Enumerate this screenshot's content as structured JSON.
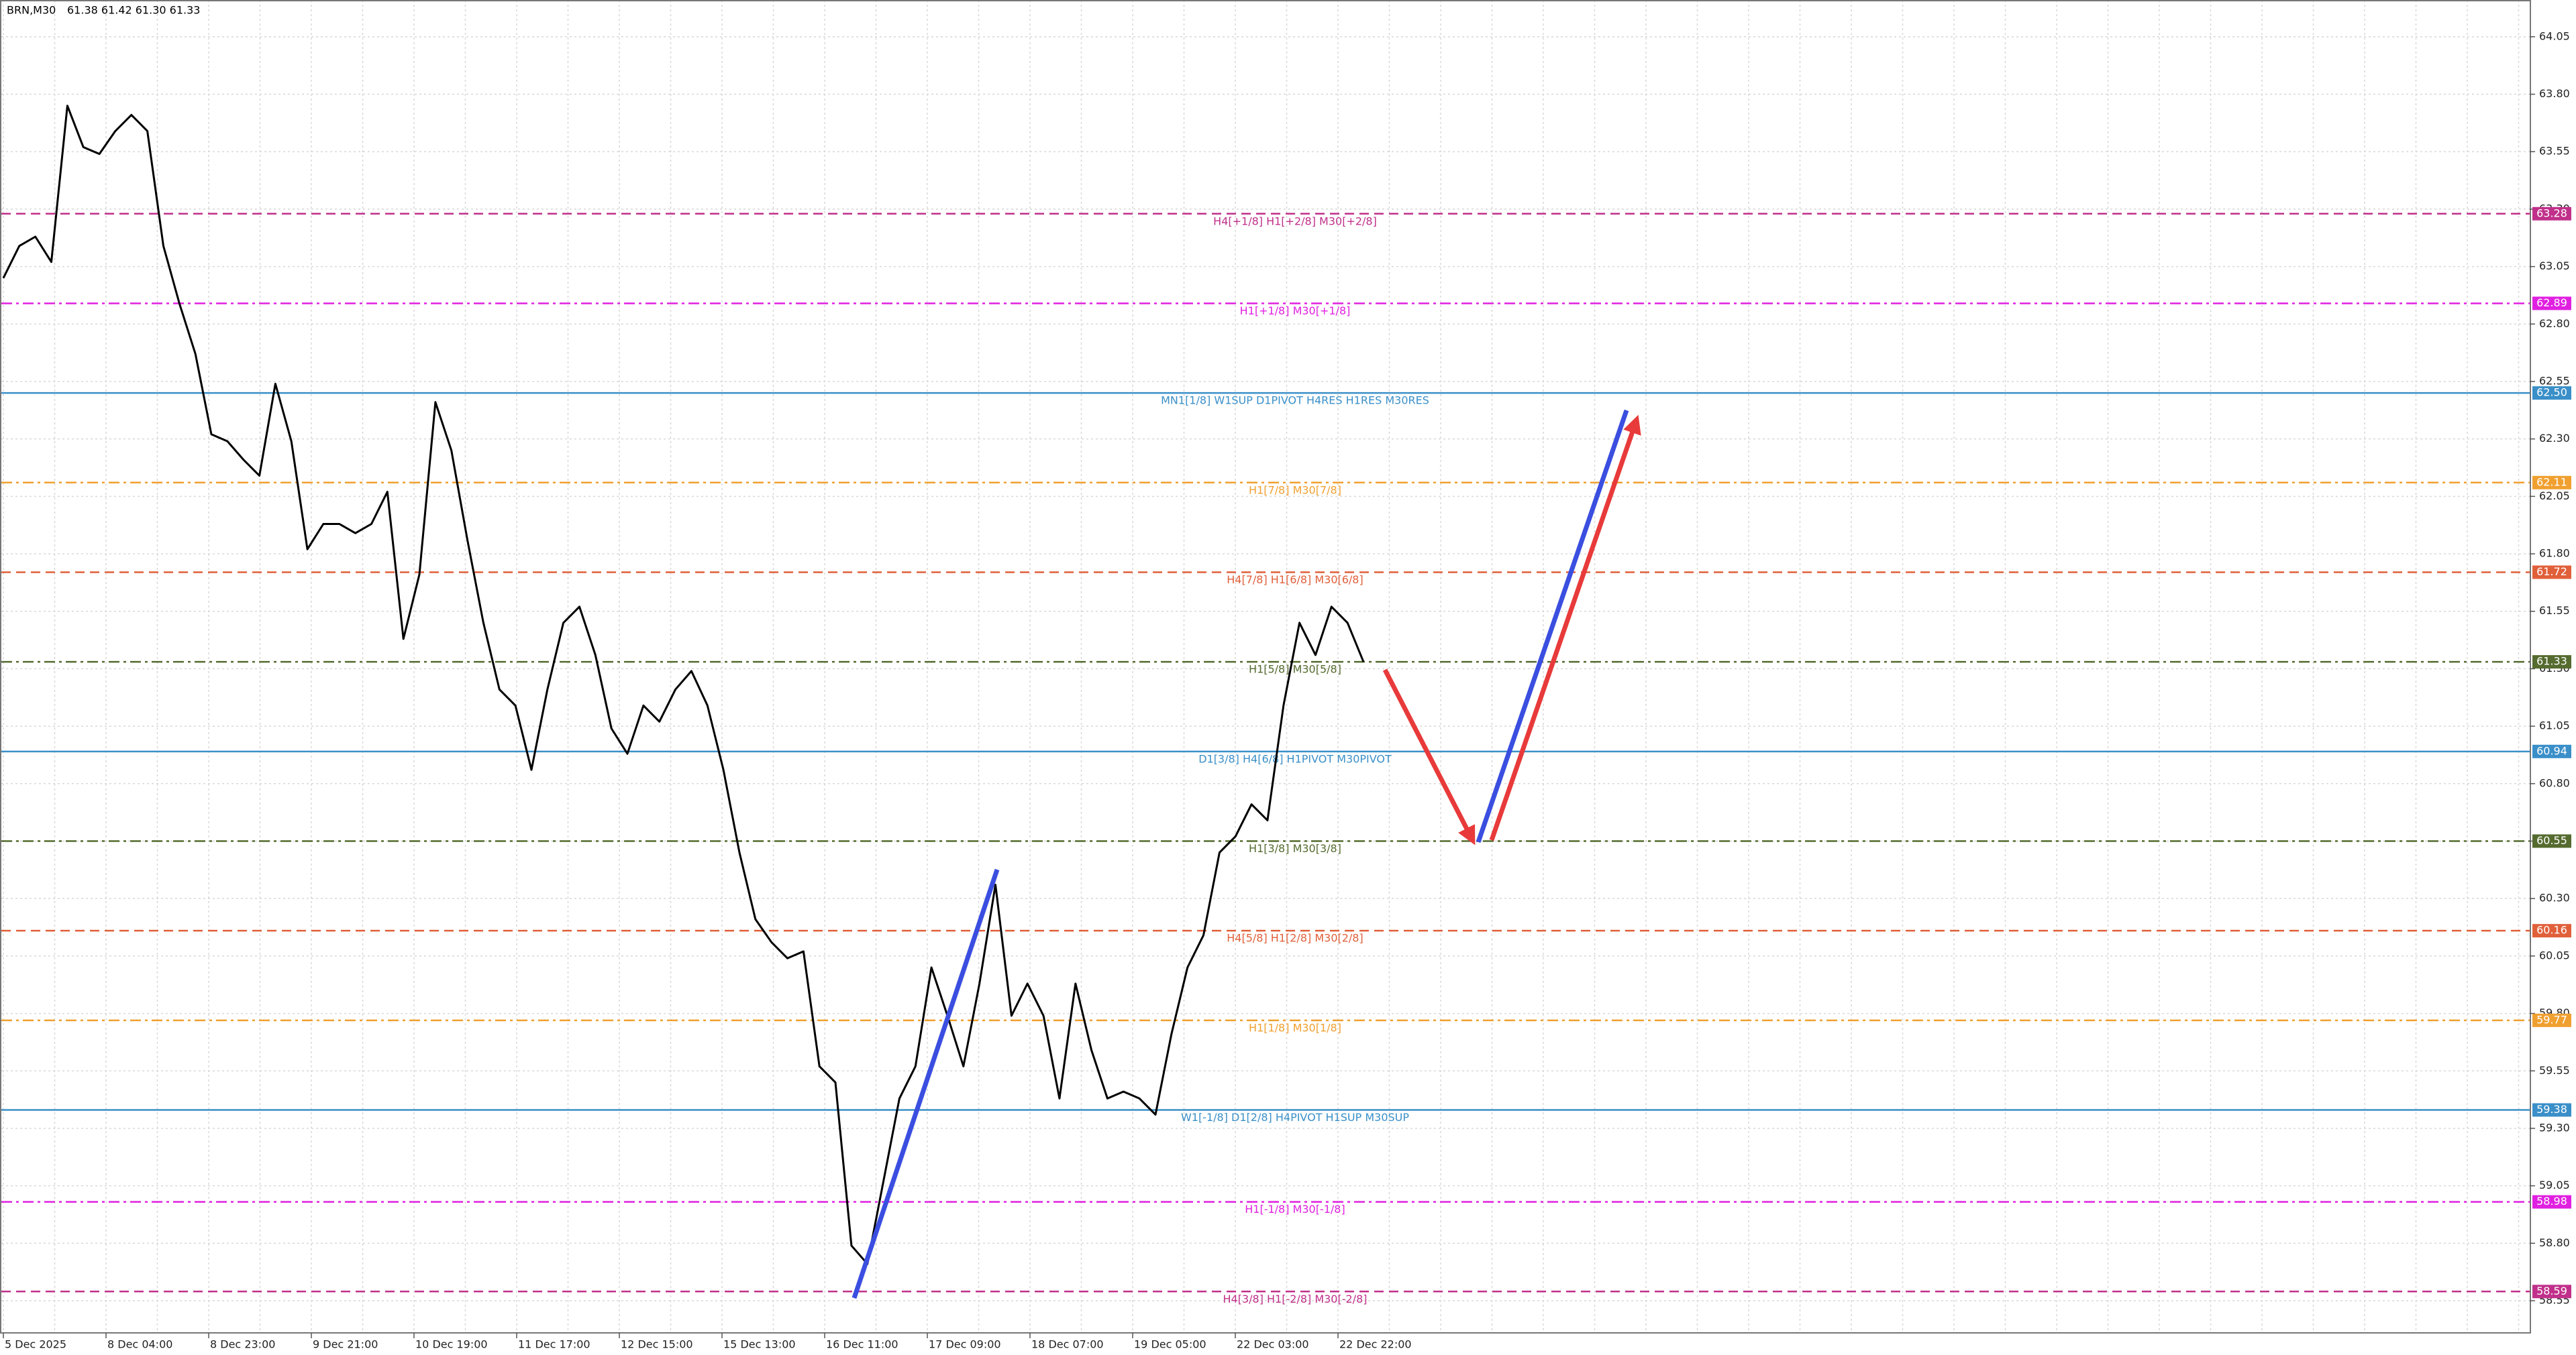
{
  "header": {
    "symbol": "BRN,M30",
    "quote": "61.38 61.42 61.30 61.33"
  },
  "chart_data": {
    "type": "line",
    "ylim": [
      58.41,
      64.21
    ],
    "yticks": [
      64.05,
      {
        "value": 63.8,
        "label": "63.80"
      },
      63.55,
      {
        "value": 63.3,
        "label": "63.30"
      },
      63.05,
      {
        "value": 62.8,
        "label": "62.80"
      },
      62.55,
      {
        "value": 62.3,
        "label": "62.30"
      },
      62.05,
      {
        "value": 61.8,
        "label": "61.80"
      },
      61.55,
      {
        "value": 61.3,
        "label": "61.30"
      },
      61.05,
      {
        "value": 60.8,
        "label": "60.80"
      },
      60.55,
      {
        "value": 60.3,
        "label": "60.30"
      },
      60.05,
      {
        "value": 59.8,
        "label": "59.80"
      },
      59.55,
      {
        "value": 59.3,
        "label": "59.30"
      },
      59.05,
      {
        "value": 58.8,
        "label": "58.80"
      },
      58.55
    ],
    "grid": true,
    "time_labels": [
      "5 Dec 2025",
      "8 Dec 04:00",
      "8 Dec 23:00",
      "9 Dec 21:00",
      "10 Dec 19:00",
      "11 Dec 17:00",
      "12 Dec 15:00",
      "15 Dec 13:00",
      "16 Dec 11:00",
      "17 Dec 09:00",
      "18 Dec 07:00",
      "19 Dec 05:00",
      "22 Dec 03:00",
      "22 Dec 22:00"
    ],
    "series": [
      {
        "color": "#000000",
        "values": [
          63.0,
          63.14,
          63.18,
          63.07,
          63.75,
          63.57,
          63.54,
          63.64,
          63.71,
          63.64,
          63.14,
          62.89,
          62.67,
          62.32,
          62.29,
          62.21,
          62.14,
          62.54,
          62.29,
          61.82,
          61.93,
          61.93,
          61.89,
          61.93,
          62.07,
          61.43,
          61.71,
          62.46,
          62.25,
          61.86,
          61.5,
          61.21,
          61.14,
          60.86,
          61.21,
          61.5,
          61.57,
          61.36,
          61.04,
          60.93,
          61.14,
          61.07,
          61.21,
          61.29,
          61.14,
          60.86,
          60.5,
          60.21,
          60.11,
          60.04,
          60.07,
          59.57,
          59.5,
          58.79,
          58.71,
          59.07,
          59.43,
          59.57,
          60.0,
          59.79,
          59.57,
          59.93,
          60.36,
          59.79,
          59.93,
          59.79,
          59.43,
          59.93,
          59.64,
          59.43,
          59.46,
          59.43,
          59.36,
          59.71,
          60.0,
          60.14,
          60.5,
          60.57,
          60.71,
          60.64,
          61.14,
          61.5,
          61.36,
          61.57,
          61.5,
          61.33
        ]
      }
    ],
    "levels": [
      {
        "name": "H4[+1/8] H1[+2/8] M30[+2/8]",
        "value": 63.28,
        "label": "63.28",
        "color": "#c0308a",
        "dash": "dash"
      },
      {
        "name": "H1[+1/8] M30[+1/8]",
        "value": 62.89,
        "label": "62.89",
        "color": "#e020e0",
        "dash": "dashdot"
      },
      {
        "name": "MN1[1/8] W1SUP D1PIVOT H4RES H1RES M30RES",
        "value": 62.5,
        "label": "62.50",
        "color": "#3a8fc8",
        "dash": "solid"
      },
      {
        "name": "H1[7/8] M30[7/8]",
        "value": 62.11,
        "label": "62.11",
        "color": "#f0a030",
        "dash": "dashdot"
      },
      {
        "name": "H4[7/8] H1[6/8] M30[6/8]",
        "value": 61.72,
        "label": "61.72",
        "color": "#e0603a",
        "dash": "dash"
      },
      {
        "name": "H1[5/8] M30[5/8]",
        "value": 61.33,
        "label": "61.33",
        "color": "#556b2f",
        "dash": "dashdot"
      },
      {
        "name": "D1[3/8] H4[6/8] H1PIVOT M30PIVOT",
        "value": 60.94,
        "label": "60.94",
        "color": "#3a8fc8",
        "dash": "solid"
      },
      {
        "name": "H1[3/8] M30[3/8]",
        "value": 60.55,
        "label": "60.55",
        "color": "#556b2f",
        "dash": "dashdot"
      },
      {
        "name": "H4[5/8] H1[2/8] M30[2/8]",
        "value": 60.16,
        "label": "60.16",
        "color": "#e0603a",
        "dash": "dash"
      },
      {
        "name": "H1[1/8] M30[1/8]",
        "value": 59.77,
        "label": "59.77",
        "color": "#f0a030",
        "dash": "dashdot"
      },
      {
        "name": "W1[-1/8] D1[2/8] H4PIVOT H1SUP M30SUP",
        "value": 59.38,
        "label": "59.38",
        "color": "#3a8fc8",
        "dash": "solid"
      },
      {
        "name": "H1[-1/8] M30[-1/8]",
        "value": 58.98,
        "label": "58.98",
        "color": "#e020e0",
        "dash": "dashdot"
      },
      {
        "name": "H4[3/8] H1[-2/8] M30[-2/8]",
        "value": 58.59,
        "label": "58.59",
        "color": "#c0308a",
        "dash": "dash"
      }
    ]
  }
}
